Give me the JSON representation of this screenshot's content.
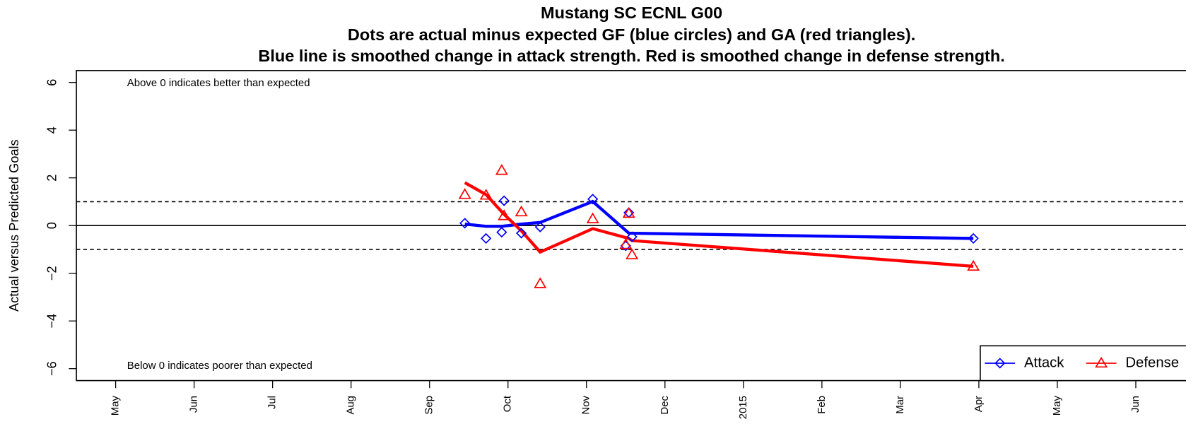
{
  "chart_data": {
    "type": "line",
    "title": "Mustang SC ECNL G00",
    "subtitle": "Dots are actual minus expected GF (blue circles) and GA (red triangles).",
    "subtitle2": "Blue line is smoothed change in attack strength. Red is smoothed change in defense strength.",
    "y_label": "Actual versus Predicted Goals",
    "annotations": [
      "Above 0 indicates better than expected",
      "Below 0 indicates poorer than expected"
    ],
    "xlim": [
      4.5,
      18.63
    ],
    "xticks": [
      {
        "value": 5,
        "label": "May"
      },
      {
        "value": 6,
        "label": "Jun"
      },
      {
        "value": 7,
        "label": "Jul"
      },
      {
        "value": 8,
        "label": "Aug"
      },
      {
        "value": 9,
        "label": "Sep"
      },
      {
        "value": 10,
        "label": "Oct"
      },
      {
        "value": 11,
        "label": "Nov"
      },
      {
        "value": 12,
        "label": "Dec"
      },
      {
        "value": 13,
        "label": "2015"
      },
      {
        "value": 14,
        "label": "Feb"
      },
      {
        "value": 15,
        "label": "Mar"
      },
      {
        "value": 16,
        "label": "Apr"
      },
      {
        "value": 17,
        "label": "May"
      },
      {
        "value": 18,
        "label": "Jun"
      }
    ],
    "ylim": [
      -6.5,
      6.5
    ],
    "yticks": [
      {
        "value": -6,
        "label": "−6"
      },
      {
        "value": -4,
        "label": "−4"
      },
      {
        "value": -2,
        "label": "−2"
      },
      0,
      2,
      4,
      6
    ],
    "hlines": [
      {
        "value": 0,
        "style": "solid"
      },
      {
        "value": 1,
        "style": "dashed"
      },
      {
        "value": -1,
        "style": "dashed"
      }
    ],
    "legend": "bottom-right",
    "series": [
      {
        "name": "Attack",
        "color": "#0000ff",
        "marker": "diamond",
        "x": [
          9.45,
          9.72,
          9.92,
          9.95,
          10.17,
          10.41,
          11.08,
          11.5,
          11.54,
          11.58,
          15.93
        ],
        "values": [
          0.1,
          -0.54,
          -0.28,
          1.04,
          -0.32,
          -0.06,
          1.11,
          -0.85,
          0.54,
          -0.47,
          -0.54
        ],
        "smooth_x": [
          9.45,
          9.72,
          9.92,
          10.17,
          10.41,
          11.08,
          11.54,
          15.93
        ],
        "smooth_values": [
          0.06,
          -0.03,
          -0.03,
          0.06,
          0.13,
          1.01,
          -0.32,
          -0.54
        ]
      },
      {
        "name": "Defense",
        "color": "#ff0000",
        "marker": "triangle",
        "x": [
          9.45,
          9.72,
          9.92,
          9.95,
          10.17,
          10.41,
          11.08,
          11.5,
          11.54,
          11.58,
          15.93
        ],
        "values": [
          1.3,
          1.27,
          2.31,
          0.41,
          0.57,
          -2.44,
          0.28,
          -0.8,
          0.51,
          -1.23,
          -1.71
        ],
        "smooth_x": [
          9.45,
          9.72,
          9.95,
          10.17,
          10.41,
          11.08,
          11.54,
          11.58,
          15.93
        ],
        "smooth_values": [
          1.8,
          1.3,
          0.47,
          -0.22,
          -1.11,
          -0.13,
          -0.54,
          -0.63,
          -1.71
        ]
      }
    ]
  }
}
